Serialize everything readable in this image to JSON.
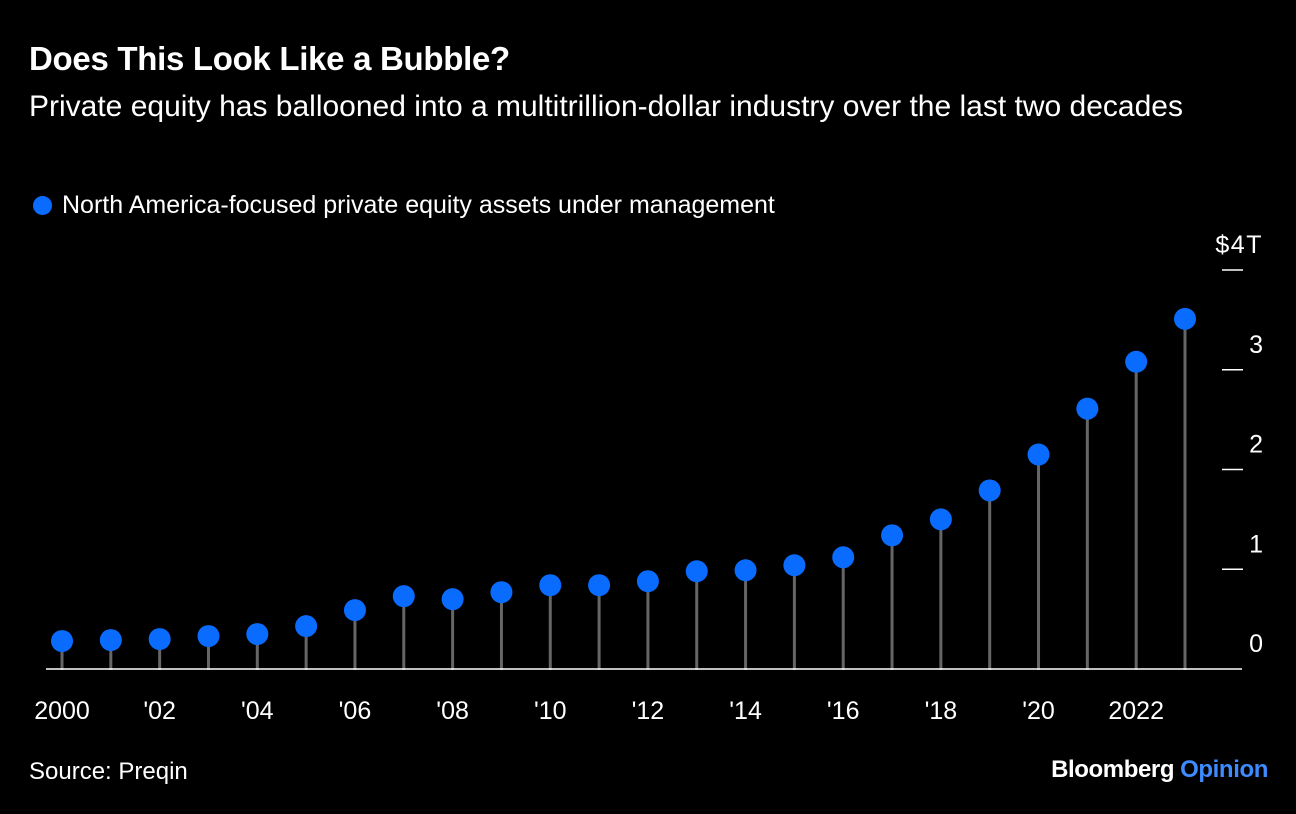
{
  "header": {
    "title": "Does This Look Like a Bubble?",
    "subtitle": "Private equity has ballooned into a multitrillion-dollar industry over the last two decades"
  },
  "footer": {
    "source": "Source: Preqin",
    "brand_main": "Bloomberg",
    "brand_accent": "Opinion"
  },
  "colors": {
    "background": "#000000",
    "point": "#0a6cff",
    "stem": "#666666",
    "axis": "#ffffff",
    "text": "#ffffff",
    "brand_accent": "#3d8bff"
  },
  "chart_data": {
    "type": "scatter",
    "style": "lollipop",
    "x": [
      2000,
      2001,
      2002,
      2003,
      2004,
      2005,
      2006,
      2007,
      2008,
      2009,
      2010,
      2011,
      2012,
      2013,
      2014,
      2015,
      2016,
      2017,
      2018,
      2019,
      2020,
      2021,
      2022,
      2023
    ],
    "series": [
      {
        "name": "North America-focused private equity assets under management",
        "values": [
          0.28,
          0.29,
          0.3,
          0.33,
          0.35,
          0.43,
          0.59,
          0.73,
          0.7,
          0.77,
          0.84,
          0.84,
          0.88,
          0.98,
          0.99,
          1.04,
          1.12,
          1.34,
          1.5,
          1.79,
          2.15,
          2.61,
          3.08,
          3.51
        ]
      }
    ],
    "ylim": [
      0,
      4
    ],
    "y_ticks": [
      0,
      1,
      2,
      3,
      4
    ],
    "y_tick_labels": [
      "0",
      "1",
      "2",
      "3",
      "$4T"
    ],
    "x_ticks": [
      2000,
      2002,
      2004,
      2006,
      2008,
      2010,
      2012,
      2014,
      2016,
      2018,
      2020,
      2022
    ],
    "x_tick_labels": [
      "2000",
      "'02",
      "'04",
      "'06",
      "'08",
      "'10",
      "'12",
      "'14",
      "'16",
      "'18",
      "'20",
      "2022"
    ],
    "y_axis_position": "right",
    "legend_position": "top-left",
    "grid": false
  }
}
